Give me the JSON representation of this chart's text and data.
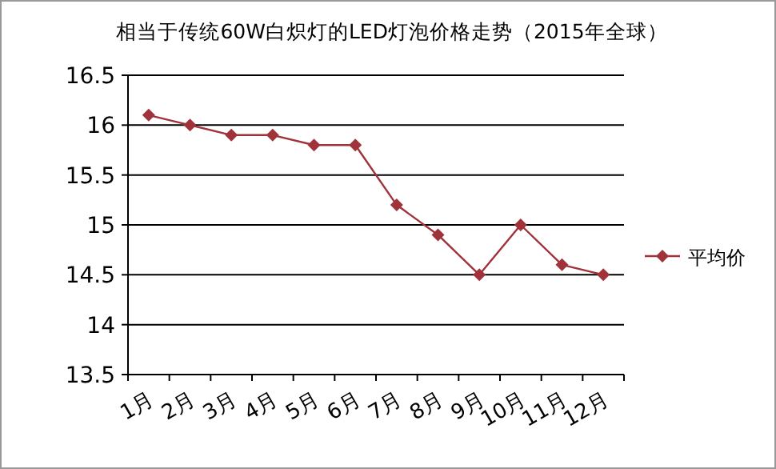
{
  "chart_data": {
    "type": "line",
    "title": "相当于传统60W白炽灯的LED灯泡价格走势（2015年全球）",
    "categories": [
      "1月",
      "2月",
      "3月",
      "4月",
      "5月",
      "6月",
      "7月",
      "8月",
      "9月",
      "10月",
      "11月",
      "12月"
    ],
    "series": [
      {
        "name": "平均价",
        "color": "#a0323a",
        "values": [
          16.1,
          16.0,
          15.9,
          15.9,
          15.8,
          15.8,
          15.2,
          14.9,
          14.5,
          15.0,
          14.6,
          14.5
        ]
      }
    ],
    "ylim": [
      13.5,
      16.5
    ],
    "yticks": [
      13.5,
      14,
      14.5,
      15,
      15.5,
      16,
      16.5
    ],
    "grid": "y",
    "legend": "right",
    "marker": "diamond",
    "line_style": "solid"
  }
}
